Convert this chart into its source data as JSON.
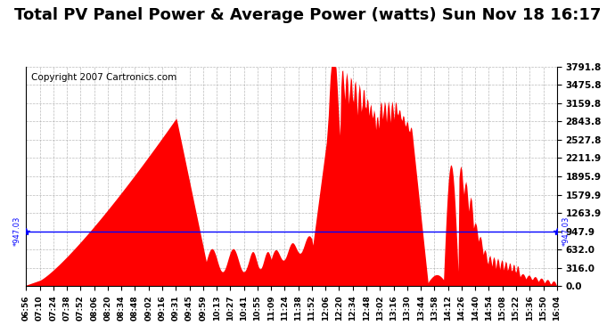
{
  "title": "Total PV Panel Power & Average Power (watts) Sun Nov 18 16:17",
  "copyright": "Copyright 2007 Cartronics.com",
  "avg_power": 947.03,
  "y_max": 3791.8,
  "y_min": 0.0,
  "ytick_labels": [
    "0.0",
    "316.0",
    "632.0",
    "947.9",
    "1263.9",
    "1579.9",
    "1895.9",
    "2211.9",
    "2527.8",
    "2843.8",
    "3159.8",
    "3475.8",
    "3791.8"
  ],
  "ytick_values": [
    0.0,
    316.0,
    632.0,
    947.9,
    1263.9,
    1579.9,
    1895.9,
    2211.9,
    2527.8,
    2843.8,
    3159.8,
    3475.8,
    3791.8
  ],
  "bar_color": "#FF0000",
  "avg_line_color": "#0000FF",
  "background_color": "#FFFFFF",
  "plot_bg_color": "#FFFFFF",
  "grid_color": "#AAAAAA",
  "title_fontsize": 13,
  "copyright_fontsize": 7.5,
  "xtick_labels": [
    "06:56",
    "07:10",
    "07:24",
    "07:38",
    "07:52",
    "08:06",
    "08:20",
    "08:34",
    "08:48",
    "09:02",
    "09:16",
    "09:31",
    "09:45",
    "09:59",
    "10:13",
    "10:27",
    "10:41",
    "10:55",
    "11:09",
    "11:24",
    "11:38",
    "11:52",
    "12:06",
    "12:20",
    "12:34",
    "12:48",
    "13:02",
    "13:16",
    "13:30",
    "13:44",
    "13:58",
    "14:12",
    "14:26",
    "14:40",
    "14:54",
    "15:08",
    "15:22",
    "15:36",
    "15:50",
    "16:04"
  ],
  "avg_label": "947.03"
}
